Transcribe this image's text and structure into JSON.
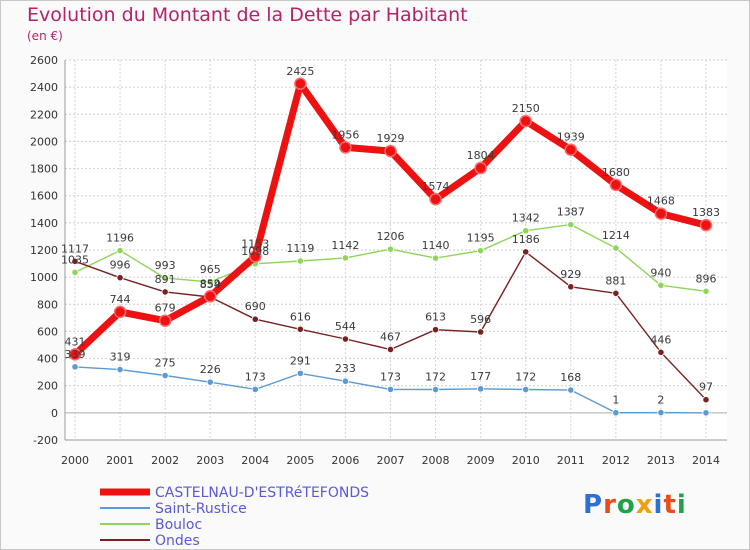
{
  "title": "Evolution du Montant de la Dette par Habitant",
  "subtitle": "(en €)",
  "logo": {
    "text": "Proxiti",
    "letter_colors": [
      "#2e6fd6",
      "#e94b1a",
      "#1fa34a",
      "#f0a10a",
      "#2e6fd6",
      "#e94b1a",
      "#1fa34a"
    ]
  },
  "chart_data": {
    "type": "line",
    "title": "Evolution du Montant de la Dette par Habitant",
    "ylabel": "(en €)",
    "ylim": [
      -200,
      2600
    ],
    "ytick_step": 200,
    "y_ticks": [
      "-200",
      "0",
      "200",
      "400",
      "600",
      "800",
      "1000",
      "1200",
      "1400",
      "1600",
      "1800",
      "2000",
      "2200",
      "2400",
      "2600"
    ],
    "x": [
      "2000",
      "2001",
      "2002",
      "2003",
      "2004",
      "2005",
      "2006",
      "2007",
      "2008",
      "2009",
      "2010",
      "2011",
      "2012",
      "2013",
      "2014"
    ],
    "grid": true,
    "legend_position": "bottom-left",
    "series": [
      {
        "name": "CASTELNAU-D'ESTRéTEFONDS",
        "color": "#ee1111",
        "values": [
          431,
          744,
          679,
          859,
          1153,
          2425,
          1956,
          1929,
          1574,
          1804,
          2150,
          1939,
          1680,
          1468,
          1383
        ],
        "labels": [
          "431",
          "744",
          "679",
          "859",
          "1153",
          "2425",
          "1956",
          "1929",
          "1574",
          "1804",
          "2150",
          "1939",
          "1680",
          "1468",
          "1383"
        ]
      },
      {
        "name": "Saint-Rustice",
        "color": "#5b9bd5",
        "values": [
          339,
          319,
          275,
          226,
          173,
          291,
          233,
          173,
          172,
          177,
          172,
          168,
          1,
          2,
          0
        ],
        "labels": [
          "339",
          "319",
          "275",
          "226",
          "173",
          "291",
          "233",
          "173",
          "172",
          "177",
          "172",
          "168",
          "1",
          "2",
          ""
        ]
      },
      {
        "name": "Bouloc",
        "color": "#8ed55a",
        "values": [
          1035,
          1196,
          993,
          965,
          1098,
          1119,
          1142,
          1206,
          1140,
          1195,
          1342,
          1387,
          1214,
          940,
          896
        ],
        "labels": [
          "1035",
          "1196",
          "993",
          "965",
          "1098",
          "1119",
          "1142",
          "1206",
          "1140",
          "1195",
          "1342",
          "1387",
          "1214",
          "940",
          "896"
        ]
      },
      {
        "name": "Ondes",
        "color": "#7a2020",
        "values": [
          1117,
          996,
          891,
          854,
          690,
          616,
          544,
          467,
          613,
          596,
          1186,
          929,
          881,
          446,
          97
        ],
        "labels": [
          "1117",
          "996",
          "891",
          "854",
          "690",
          "616",
          "544",
          "467",
          "613",
          "596",
          "1186",
          "929",
          "881",
          "446",
          "97"
        ]
      }
    ]
  }
}
